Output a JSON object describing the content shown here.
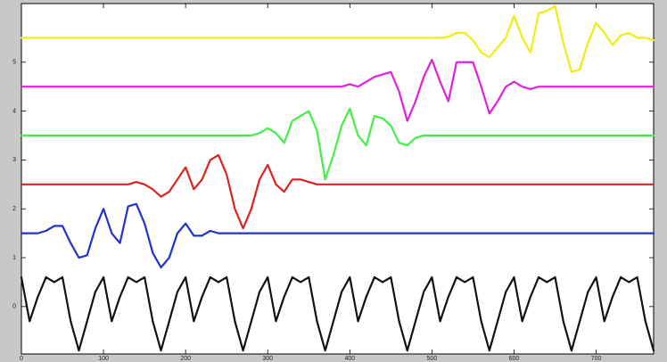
{
  "chart_data": {
    "type": "line",
    "x": [
      0,
      10,
      20,
      30,
      40,
      50,
      60,
      70,
      80,
      90,
      100,
      110,
      120,
      130,
      140,
      150,
      160,
      170,
      180,
      190,
      200,
      210,
      220,
      230,
      240,
      250,
      260,
      270,
      280,
      290,
      300,
      310,
      320,
      330,
      340,
      350,
      360,
      370,
      380,
      390,
      400,
      410,
      420,
      430,
      440,
      450,
      460,
      470,
      480,
      490,
      500,
      510,
      520,
      530,
      540,
      550,
      560,
      570,
      580,
      590,
      600,
      610,
      620,
      630,
      640,
      650,
      660,
      670,
      680,
      690,
      700,
      710,
      720,
      730,
      740,
      750,
      760,
      770
    ],
    "series": [
      {
        "color": "#111111",
        "values": [
          0.6,
          -0.3,
          0.2,
          0.6,
          0.5,
          0.6,
          -0.3,
          -0.9,
          -0.3,
          0.3,
          0.6,
          -0.3,
          0.2,
          0.6,
          0.5,
          0.6,
          -0.3,
          -0.9,
          -0.3,
          0.3,
          0.6,
          -0.3,
          0.2,
          0.6,
          0.5,
          0.6,
          -0.3,
          -0.9,
          -0.3,
          0.3,
          0.6,
          -0.3,
          0.2,
          0.6,
          0.5,
          0.6,
          -0.3,
          -0.9,
          -0.3,
          0.3,
          0.6,
          -0.3,
          0.2,
          0.6,
          0.5,
          0.6,
          -0.3,
          -0.9,
          -0.3,
          0.3,
          0.6,
          -0.3,
          0.2,
          0.6,
          0.5,
          0.6,
          -0.3,
          -0.9,
          -0.3,
          0.3,
          0.6,
          -0.3,
          0.2,
          0.6,
          0.5,
          0.6,
          -0.3,
          -0.9,
          -0.3,
          0.3,
          0.6,
          -0.3,
          0.2,
          0.6,
          0.5,
          0.6,
          -0.3,
          -0.9
        ]
      },
      {
        "color": "#2233cc",
        "values": [
          1.5,
          1.5,
          1.5,
          1.55,
          1.65,
          1.65,
          1.3,
          1.0,
          1.05,
          1.6,
          2.0,
          1.5,
          1.3,
          2.05,
          2.1,
          1.7,
          1.1,
          0.8,
          1.0,
          1.5,
          1.7,
          1.45,
          1.45,
          1.55,
          1.5,
          1.5,
          1.5,
          1.5,
          1.5,
          1.5,
          1.5,
          1.5,
          1.5,
          1.5,
          1.5,
          1.5,
          1.5,
          1.5,
          1.5,
          1.5,
          1.5,
          1.5,
          1.5,
          1.5,
          1.5,
          1.5,
          1.5,
          1.5,
          1.5,
          1.5,
          1.5,
          1.5,
          1.5,
          1.5,
          1.5,
          1.5,
          1.5,
          1.5,
          1.5,
          1.5,
          1.5,
          1.5,
          1.5,
          1.5,
          1.5,
          1.5,
          1.5,
          1.5,
          1.5,
          1.5,
          1.5,
          1.5,
          1.5,
          1.5,
          1.5,
          1.5,
          1.5,
          1.5
        ]
      },
      {
        "color": "#dd2222",
        "values": [
          2.5,
          2.5,
          2.5,
          2.5,
          2.5,
          2.5,
          2.5,
          2.5,
          2.5,
          2.5,
          2.5,
          2.5,
          2.5,
          2.5,
          2.55,
          2.5,
          2.4,
          2.25,
          2.35,
          2.6,
          2.85,
          2.4,
          2.6,
          3.0,
          3.1,
          2.7,
          2.0,
          1.6,
          2.0,
          2.6,
          2.9,
          2.5,
          2.35,
          2.6,
          2.6,
          2.55,
          2.5,
          2.5,
          2.5,
          2.5,
          2.5,
          2.5,
          2.5,
          2.5,
          2.5,
          2.5,
          2.5,
          2.5,
          2.5,
          2.5,
          2.5,
          2.5,
          2.5,
          2.5,
          2.5,
          2.5,
          2.5,
          2.5,
          2.5,
          2.5,
          2.5,
          2.5,
          2.5,
          2.5,
          2.5,
          2.5,
          2.5,
          2.5,
          2.5,
          2.5,
          2.5,
          2.5,
          2.5,
          2.5,
          2.5,
          2.5,
          2.5,
          2.5
        ]
      },
      {
        "color": "#44ee44",
        "values": [
          3.5,
          3.5,
          3.5,
          3.5,
          3.5,
          3.5,
          3.5,
          3.5,
          3.5,
          3.5,
          3.5,
          3.5,
          3.5,
          3.5,
          3.5,
          3.5,
          3.5,
          3.5,
          3.5,
          3.5,
          3.5,
          3.5,
          3.5,
          3.5,
          3.5,
          3.5,
          3.5,
          3.5,
          3.5,
          3.55,
          3.65,
          3.55,
          3.35,
          3.8,
          3.9,
          4.0,
          3.6,
          2.6,
          3.1,
          3.7,
          4.05,
          3.5,
          3.3,
          3.9,
          3.85,
          3.7,
          3.35,
          3.3,
          3.45,
          3.5,
          3.5,
          3.5,
          3.5,
          3.5,
          3.5,
          3.5,
          3.5,
          3.5,
          3.5,
          3.5,
          3.5,
          3.5,
          3.5,
          3.5,
          3.5,
          3.5,
          3.5,
          3.5,
          3.5,
          3.5,
          3.5,
          3.5,
          3.5,
          3.5,
          3.5,
          3.5,
          3.5,
          3.5
        ]
      },
      {
        "color": "#e020e0",
        "values": [
          4.5,
          4.5,
          4.5,
          4.5,
          4.5,
          4.5,
          4.5,
          4.5,
          4.5,
          4.5,
          4.5,
          4.5,
          4.5,
          4.5,
          4.5,
          4.5,
          4.5,
          4.5,
          4.5,
          4.5,
          4.5,
          4.5,
          4.5,
          4.5,
          4.5,
          4.5,
          4.5,
          4.5,
          4.5,
          4.5,
          4.5,
          4.5,
          4.5,
          4.5,
          4.5,
          4.5,
          4.5,
          4.5,
          4.5,
          4.5,
          4.55,
          4.5,
          4.6,
          4.7,
          4.75,
          4.8,
          4.4,
          3.8,
          4.2,
          4.7,
          5.05,
          4.6,
          4.2,
          5.0,
          5.0,
          5.0,
          4.5,
          3.95,
          4.2,
          4.5,
          4.6,
          4.5,
          4.45,
          4.5,
          4.5,
          4.5,
          4.5,
          4.5,
          4.5,
          4.5,
          4.5,
          4.5,
          4.5,
          4.5,
          4.5,
          4.5,
          4.5,
          4.5
        ]
      },
      {
        "color": "#eeee11",
        "values": [
          5.5,
          5.5,
          5.5,
          5.5,
          5.5,
          5.5,
          5.5,
          5.5,
          5.5,
          5.5,
          5.5,
          5.5,
          5.5,
          5.5,
          5.5,
          5.5,
          5.5,
          5.5,
          5.5,
          5.5,
          5.5,
          5.5,
          5.5,
          5.5,
          5.5,
          5.5,
          5.5,
          5.5,
          5.5,
          5.5,
          5.5,
          5.5,
          5.5,
          5.5,
          5.5,
          5.5,
          5.5,
          5.5,
          5.5,
          5.5,
          5.5,
          5.5,
          5.5,
          5.5,
          5.5,
          5.5,
          5.5,
          5.5,
          5.5,
          5.5,
          5.5,
          5.5,
          5.52,
          5.6,
          5.6,
          5.45,
          5.2,
          5.1,
          5.3,
          5.5,
          5.95,
          5.5,
          5.2,
          6.0,
          6.05,
          6.15,
          5.4,
          4.8,
          4.85,
          5.4,
          5.8,
          5.6,
          5.35,
          5.55,
          5.6,
          5.5,
          5.5,
          5.45
        ]
      }
    ],
    "xlim": [
      0,
      770
    ],
    "xticks": [
      0,
      100,
      200,
      300,
      400,
      500,
      600,
      700
    ],
    "ylim": [
      -0.97,
      6.2
    ],
    "yticks": [
      0,
      1,
      2,
      3,
      4,
      5
    ]
  }
}
